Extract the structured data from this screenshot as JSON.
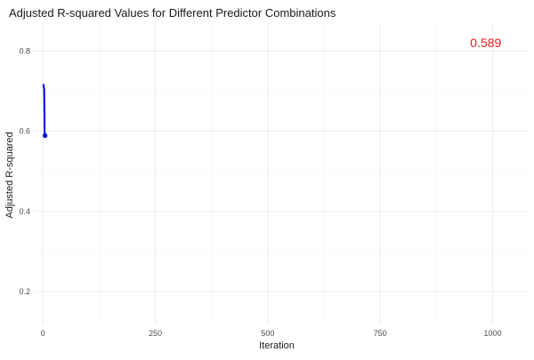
{
  "chart_data": {
    "type": "line",
    "title": "Adjusted R-squared Values for Different Predictor Combinations",
    "xlabel": "Iteration",
    "ylabel": "Adjusted R-squared",
    "xlim": [
      -20,
      1080
    ],
    "ylim": [
      0.12,
      0.87
    ],
    "x_ticks": [
      0,
      250,
      500,
      750,
      1000
    ],
    "x_tick_labels": [
      "0",
      "250",
      "500",
      "750",
      "1000"
    ],
    "y_ticks": [
      0.2,
      0.4,
      0.6,
      0.8
    ],
    "y_tick_labels": [
      "0.2",
      "0.4",
      "0.6",
      "0.8"
    ],
    "grid": true,
    "legend": "none",
    "series": [
      {
        "color": "#0000ff",
        "x": [
          1,
          2,
          3,
          4,
          5
        ],
        "y": [
          0.718,
          0.712,
          0.705,
          0.6,
          0.589
        ]
      }
    ],
    "highlight_point": {
      "x": 5,
      "y": 0.589,
      "color": "#0000cd"
    },
    "annotation": {
      "text": "0.589",
      "x": 950,
      "y": 0.81,
      "color": "#e31a1c"
    }
  }
}
